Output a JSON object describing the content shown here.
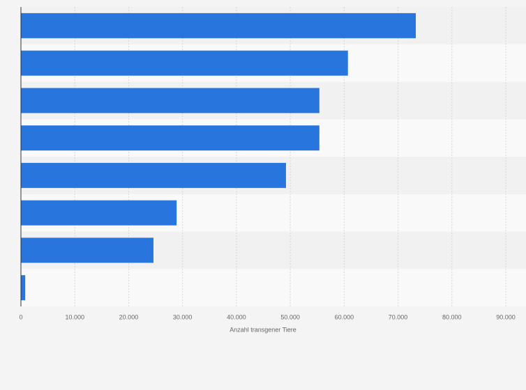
{
  "chart_data": {
    "type": "barh",
    "x_label": "Anzahl transgener Tiere",
    "categories": [
      null,
      null,
      null,
      null,
      null,
      null,
      null,
      null
    ],
    "values": [
      73300,
      60700,
      55400,
      55400,
      49200,
      28900,
      24600,
      800
    ],
    "color": "#2876dd",
    "xlim": [
      0,
      90000
    ],
    "xticks": [
      0,
      {
        "value": 10000,
        "label": "10.000"
      },
      {
        "value": 20000,
        "label": "20.000"
      },
      {
        "value": 30000,
        "label": "30.000"
      },
      {
        "value": 40000,
        "label": "40.000"
      },
      {
        "value": 50000,
        "label": "50.000"
      },
      {
        "value": 60000,
        "label": "60.000"
      },
      {
        "value": 70000,
        "label": "70.000"
      },
      {
        "value": 80000,
        "label": "80.000"
      },
      {
        "value": 90000,
        "label": "90.000"
      }
    ],
    "grid": true
  }
}
